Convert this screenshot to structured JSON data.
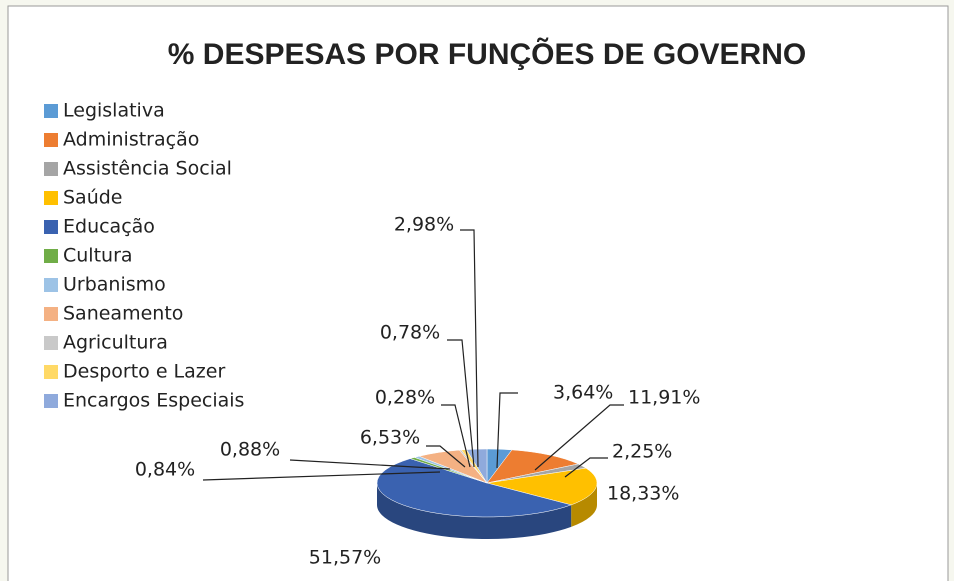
{
  "chart_data": {
    "type": "pie",
    "title": "% DESPESAS POR FUNÇÕES DE GOVERNO",
    "categories": [
      "Legislativa",
      "Administração",
      "Assistência Social",
      "Saúde",
      "Educação",
      "Cultura",
      "Urbanismo",
      "Saneamento",
      "Agricultura",
      "Desporto e Lazer",
      "Encargos Especiais"
    ],
    "values": [
      3.64,
      11.91,
      2.25,
      18.33,
      51.57,
      0.84,
      0.88,
      6.53,
      0.28,
      0.78,
      2.98
    ],
    "value_labels": [
      "3,64%",
      "11,91%",
      "2,25%",
      "18,33%",
      "51,57%",
      "0,84%",
      "0,88%",
      "6,53%",
      "0,28%",
      "0,78%",
      "2,98%"
    ],
    "colors": [
      "#5B9BD5",
      "#ED7D31",
      "#A5A5A5",
      "#FFC000",
      "#3A62B0",
      "#70AD47",
      "#9DC3E6",
      "#F4B183",
      "#C9C9C9",
      "#FFD966",
      "#8FAADC"
    ],
    "legend": "left"
  }
}
